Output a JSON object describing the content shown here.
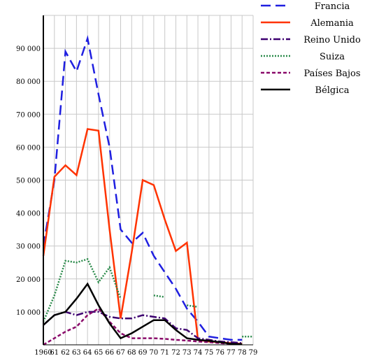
{
  "chart_data": {
    "type": "line",
    "title": "",
    "xlabel": "",
    "ylabel": "",
    "x_tick_labels": [
      "1960",
      "61",
      "62",
      "63",
      "64",
      "65",
      "66",
      "67",
      "68",
      "69",
      "70",
      "71",
      "72",
      "73",
      "74",
      "75",
      "76",
      "77",
      "78",
      "79"
    ],
    "y_tick_labels": [
      "10 000",
      "20 000",
      "30 000",
      "40 000",
      "50 000",
      "60 000",
      "70 000",
      "80 000",
      "90 000"
    ],
    "xlim": [
      1960,
      1979
    ],
    "ylim": [
      0,
      100000
    ],
    "grid": true,
    "legend_position": "top-right",
    "series": [
      {
        "name": "Francia",
        "color": "#1f1fe0",
        "dash": "dashed-long",
        "x": [
          1960,
          1961,
          1962,
          1963,
          1964,
          1965,
          1966,
          1967,
          1968,
          1969,
          1970,
          1971,
          1972,
          1973,
          1974,
          1975,
          1976,
          1977,
          1978
        ],
        "y": [
          30000,
          50000,
          89000,
          83000,
          93000,
          76000,
          60000,
          35000,
          31000,
          34000,
          27000,
          22000,
          17000,
          11000,
          7000,
          2500,
          2000,
          1500,
          1500
        ]
      },
      {
        "name": "Alemania",
        "color": "#ff3300",
        "dash": "solid",
        "x": [
          1960,
          1961,
          1962,
          1963,
          1964,
          1965,
          1966,
          1967,
          1968,
          1969,
          1970,
          1971,
          1972,
          1973,
          1974,
          1975,
          1976,
          1977,
          1978
        ],
        "y": [
          27000,
          51000,
          54500,
          51500,
          65500,
          65000,
          35000,
          8000,
          28000,
          50000,
          48500,
          38000,
          28500,
          31000,
          1500,
          1000,
          800,
          500,
          300
        ]
      },
      {
        "name": "Reino Unido",
        "color": "#3d0070",
        "dash": "dash-dot",
        "x": [
          1960,
          1961,
          1962,
          1963,
          1964,
          1965,
          1966,
          1967,
          1968,
          1969,
          1970,
          1971,
          1972,
          1973,
          1974,
          1975,
          1976,
          1977,
          1978
        ],
        "y": [
          6000,
          9000,
          10000,
          9000,
          10000,
          10000,
          8500,
          8000,
          8000,
          9000,
          8500,
          8000,
          5000,
          4500,
          2000,
          1500,
          1000,
          800,
          500
        ]
      },
      {
        "name": "Suiza",
        "color": "#2a8a4a",
        "dash": "dotted",
        "x": [
          1960,
          1961,
          1962,
          1963,
          1964,
          1965,
          1966,
          1967,
          1968,
          1969,
          1970,
          1971,
          1972,
          1973,
          1974,
          1975,
          1976,
          1977,
          1978,
          1979
        ],
        "y": [
          7000,
          15000,
          25500,
          25000,
          26000,
          19000,
          23500,
          14000,
          null,
          null,
          15000,
          14500,
          null,
          12000,
          11500,
          null,
          null,
          null,
          2500,
          2500
        ]
      },
      {
        "name": "Países Bajos",
        "color": "#8a0a6a",
        "dash": "short-dash",
        "x": [
          1960,
          1961,
          1962,
          1963,
          1964,
          1965,
          1966,
          1967,
          1968,
          1969,
          1970,
          1971,
          1972,
          1973,
          1974,
          1975,
          1976,
          1977,
          1978
        ],
        "y": [
          0,
          2000,
          4000,
          5500,
          9000,
          11000,
          7000,
          3500,
          2000,
          2000,
          2000,
          1800,
          1500,
          1300,
          1000,
          800,
          500,
          300,
          200
        ]
      },
      {
        "name": "Bélgica",
        "color": "#000000",
        "dash": "solid",
        "x": [
          1960,
          1961,
          1962,
          1963,
          1964,
          1965,
          1966,
          1967,
          1968,
          1969,
          1970,
          1971,
          1972,
          1973,
          1974,
          1975,
          1976,
          1977,
          1978
        ],
        "y": [
          6000,
          9000,
          10000,
          14000,
          18500,
          12000,
          6500,
          2000,
          3500,
          5500,
          7500,
          7500,
          4500,
          2000,
          1500,
          1200,
          800,
          300,
          200
        ]
      }
    ]
  }
}
